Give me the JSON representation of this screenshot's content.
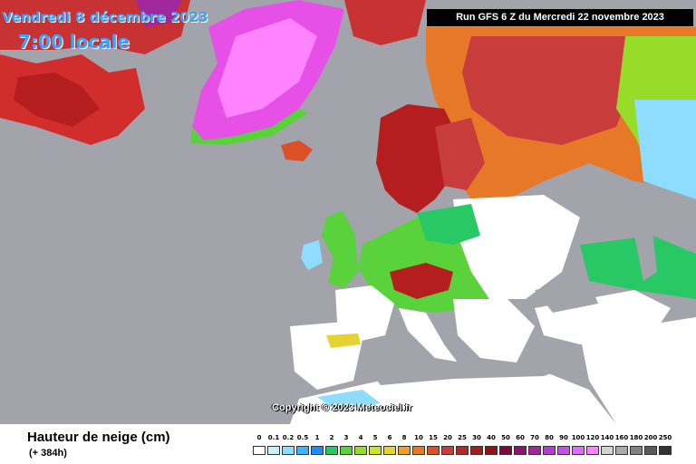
{
  "header": {
    "date": "Vendredi 8 décembre 2023",
    "time": "7:00 locale",
    "run_info": "Run GFS 6 Z du Mercredi 22 novembre 2023"
  },
  "map": {
    "copyright": "Copyright © 2023 Meteociel.fr",
    "ocean_color": "#a3a3ab",
    "land_color": "#ffffff"
  },
  "legend": {
    "title": "Hauteur de neige (cm)",
    "subtitle": "(+ 384h)",
    "unit": "cm",
    "levels": [
      "0",
      "0.1",
      "0.2",
      "0.5",
      "1",
      "2",
      "3",
      "4",
      "5",
      "6",
      "8",
      "10",
      "15",
      "20",
      "25",
      "30",
      "40",
      "50",
      "60",
      "70",
      "80",
      "90",
      "100",
      "120",
      "140",
      "160",
      "180",
      "200",
      "250"
    ],
    "colors": [
      "#ffffff",
      "#c8f0ff",
      "#8edcff",
      "#3cb4ff",
      "#1e8cff",
      "#28c864",
      "#5ad23c",
      "#96dc28",
      "#c8e628",
      "#e6d232",
      "#f0a028",
      "#e67828",
      "#dc5028",
      "#c83c3c",
      "#b42828",
      "#a01e1e",
      "#8c1414",
      "#7a0a3c",
      "#8c146e",
      "#a0289c",
      "#b43cc8",
      "#c850e6",
      "#dc6eff",
      "#ff82ff",
      "#d2d2d2",
      "#aaaaaa",
      "#828282",
      "#5a5a5a",
      "#323232"
    ]
  }
}
